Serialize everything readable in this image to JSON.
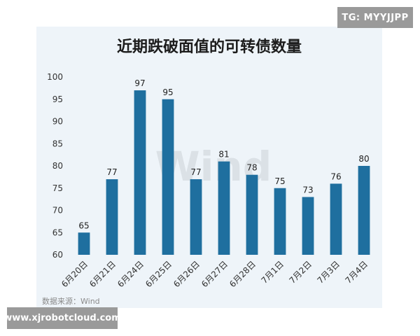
{
  "overlays": {
    "tg_badge": "TG: MYYJJPP",
    "url_badge": "www.xjrobotcloud.com"
  },
  "colors": {
    "bar": "#1f6f9f",
    "background": "#eef4f9"
  },
  "chart_data": {
    "type": "bar",
    "title": "近期跌破面值的可转债数量",
    "xlabel": "",
    "ylabel": "",
    "categories": [
      "6月20日",
      "6月21日",
      "6月24日",
      "6月25日",
      "6月26日",
      "6月27日",
      "6月28日",
      "7月1日",
      "7月2日",
      "7月3日",
      "7月4日"
    ],
    "values": [
      65,
      77,
      97,
      95,
      77,
      81,
      78,
      75,
      73,
      76,
      80
    ],
    "ylim": [
      60,
      100
    ],
    "yticks": [
      60,
      65,
      70,
      75,
      80,
      85,
      90,
      95,
      100
    ],
    "grid": false,
    "data_labels": true,
    "x_label_rotation_deg": -45,
    "source": "数据来源：Wind",
    "watermark": "Wind"
  }
}
